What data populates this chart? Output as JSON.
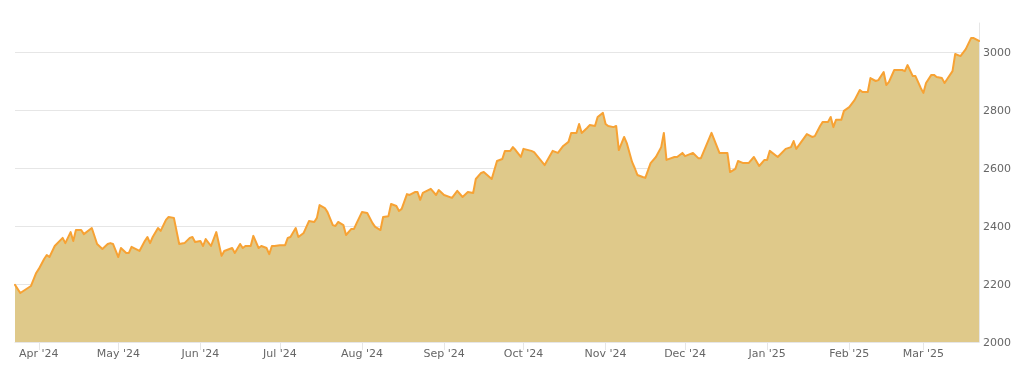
{
  "chart_data": {
    "type": "area",
    "x": [
      "2024-03-23",
      "2024-03-25",
      "2024-03-29",
      "2024-03-31",
      "2024-04-01",
      "2024-04-03",
      "2024-04-04",
      "2024-04-05",
      "2024-04-07",
      "2024-04-10",
      "2024-04-11",
      "2024-04-13",
      "2024-04-14",
      "2024-04-15",
      "2024-04-17",
      "2024-04-18",
      "2024-04-21",
      "2024-04-23",
      "2024-04-25",
      "2024-04-27",
      "2024-04-28",
      "2024-04-29",
      "2024-05-01",
      "2024-05-02",
      "2024-05-04",
      "2024-05-05",
      "2024-05-06",
      "2024-05-09",
      "2024-05-11",
      "2024-05-12",
      "2024-05-13",
      "2024-05-14",
      "2024-05-16",
      "2024-05-17",
      "2024-05-19",
      "2024-05-20",
      "2024-05-22",
      "2024-05-24",
      "2024-05-26",
      "2024-05-28",
      "2024-05-29",
      "2024-05-30",
      "2024-06-01",
      "2024-06-02",
      "2024-06-03",
      "2024-06-05",
      "2024-06-07",
      "2024-06-09",
      "2024-06-10",
      "2024-06-13",
      "2024-06-14",
      "2024-06-16",
      "2024-06-17",
      "2024-06-18",
      "2024-06-20",
      "2024-06-21",
      "2024-06-23",
      "2024-06-24",
      "2024-06-26",
      "2024-06-27",
      "2024-06-28",
      "2024-06-29",
      "2024-07-01",
      "2024-07-03",
      "2024-07-04",
      "2024-07-05",
      "2024-07-07",
      "2024-07-08",
      "2024-07-10",
      "2024-07-12",
      "2024-07-14",
      "2024-07-15",
      "2024-07-16",
      "2024-07-18",
      "2024-07-19",
      "2024-07-21",
      "2024-07-22",
      "2024-07-23",
      "2024-07-25",
      "2024-07-26",
      "2024-07-28",
      "2024-07-29",
      "2024-07-30",
      "2024-08-01",
      "2024-08-03",
      "2024-08-05",
      "2024-08-06",
      "2024-08-08",
      "2024-08-09",
      "2024-08-11",
      "2024-08-12",
      "2024-08-14",
      "2024-08-15",
      "2024-08-16",
      "2024-08-18",
      "2024-08-19",
      "2024-08-21",
      "2024-08-22",
      "2024-08-23",
      "2024-08-24",
      "2024-08-27",
      "2024-08-29",
      "2024-08-30",
      "2024-09-01",
      "2024-09-04",
      "2024-09-06",
      "2024-09-08",
      "2024-09-10",
      "2024-09-12",
      "2024-09-13",
      "2024-09-15",
      "2024-09-16",
      "2024-09-19",
      "2024-09-21",
      "2024-09-23",
      "2024-09-24",
      "2024-09-26",
      "2024-09-27",
      "2024-09-28",
      "2024-09-30",
      "2024-10-01",
      "2024-10-04",
      "2024-10-05",
      "2024-10-09",
      "2024-10-12",
      "2024-10-14",
      "2024-10-16",
      "2024-10-18",
      "2024-10-19",
      "2024-10-21",
      "2024-10-22",
      "2024-10-23",
      "2024-10-25",
      "2024-10-26",
      "2024-10-28",
      "2024-10-29",
      "2024-10-31",
      "2024-11-01",
      "2024-11-02",
      "2024-11-04",
      "2024-11-05",
      "2024-11-06",
      "2024-11-08",
      "2024-11-09",
      "2024-11-11",
      "2024-11-12",
      "2024-11-13",
      "2024-11-15",
      "2024-11-16",
      "2024-11-18",
      "2024-11-20",
      "2024-11-22",
      "2024-11-23",
      "2024-11-24",
      "2024-11-27",
      "2024-11-28",
      "2024-11-30",
      "2024-12-01",
      "2024-12-04",
      "2024-12-06",
      "2024-12-07",
      "2024-12-11",
      "2024-12-14",
      "2024-12-17",
      "2024-12-18",
      "2024-12-20",
      "2024-12-21",
      "2024-12-23",
      "2024-12-25",
      "2024-12-27",
      "2024-12-29",
      "2024-12-31",
      "2025-01-01",
      "2025-01-02",
      "2025-01-05",
      "2025-01-08",
      "2025-01-10",
      "2025-01-11",
      "2025-01-12",
      "2025-01-16",
      "2025-01-18",
      "2025-01-19",
      "2025-01-21",
      "2025-01-22",
      "2025-01-24",
      "2025-01-25",
      "2025-01-26",
      "2025-01-27",
      "2025-01-29",
      "2025-01-30",
      "2025-02-01",
      "2025-02-03",
      "2025-02-05",
      "2025-02-06",
      "2025-02-08",
      "2025-02-09",
      "2025-02-11",
      "2025-02-12",
      "2025-02-14",
      "2025-02-15",
      "2025-02-16",
      "2025-02-18",
      "2025-02-21",
      "2025-02-22",
      "2025-02-23",
      "2025-02-25",
      "2025-02-26",
      "2025-02-28",
      "2025-03-01",
      "2025-03-02",
      "2025-03-04",
      "2025-03-05",
      "2025-03-06",
      "2025-03-08",
      "2025-03-09",
      "2025-03-12",
      "2025-03-13",
      "2025-03-15",
      "2025-03-17",
      "2025-03-19",
      "2025-03-20",
      "2025-03-22"
    ],
    "series": [
      {
        "color": "#f7a234",
        "values": [
          2197,
          2169,
          2193,
          2238,
          2252,
          2286,
          2300,
          2293,
          2331,
          2359,
          2341,
          2379,
          2348,
          2386,
          2386,
          2372,
          2393,
          2338,
          2321,
          2338,
          2341,
          2338,
          2293,
          2324,
          2307,
          2307,
          2328,
          2314,
          2348,
          2362,
          2341,
          2362,
          2393,
          2383,
          2421,
          2431,
          2428,
          2338,
          2341,
          2359,
          2362,
          2345,
          2348,
          2331,
          2355,
          2331,
          2379,
          2297,
          2314,
          2324,
          2307,
          2338,
          2324,
          2331,
          2331,
          2366,
          2324,
          2331,
          2324,
          2303,
          2331,
          2331,
          2334,
          2334,
          2359,
          2362,
          2393,
          2362,
          2376,
          2417,
          2414,
          2428,
          2472,
          2462,
          2448,
          2403,
          2400,
          2414,
          2403,
          2369,
          2390,
          2390,
          2410,
          2448,
          2445,
          2410,
          2397,
          2386,
          2431,
          2434,
          2476,
          2469,
          2452,
          2459,
          2510,
          2507,
          2517,
          2517,
          2490,
          2514,
          2528,
          2507,
          2524,
          2507,
          2497,
          2521,
          2500,
          2517,
          2514,
          2562,
          2583,
          2586,
          2562,
          2624,
          2631,
          2659,
          2659,
          2672,
          2662,
          2638,
          2666,
          2659,
          2655,
          2610,
          2659,
          2652,
          2676,
          2690,
          2721,
          2721,
          2752,
          2721,
          2738,
          2748,
          2745,
          2776,
          2790,
          2752,
          2745,
          2741,
          2745,
          2662,
          2707,
          2686,
          2621,
          2600,
          2576,
          2569,
          2566,
          2617,
          2638,
          2672,
          2721,
          2628,
          2638,
          2638,
          2652,
          2641,
          2652,
          2634,
          2634,
          2721,
          2652,
          2652,
          2586,
          2597,
          2624,
          2617,
          2617,
          2638,
          2607,
          2628,
          2628,
          2659,
          2638,
          2666,
          2672,
          2693,
          2666,
          2717,
          2707,
          2710,
          2745,
          2759,
          2759,
          2776,
          2741,
          2766,
          2766,
          2797,
          2810,
          2834,
          2869,
          2862,
          2862,
          2910,
          2900,
          2903,
          2931,
          2886,
          2897,
          2938,
          2938,
          2934,
          2955,
          2917,
          2917,
          2876,
          2859,
          2893,
          2921,
          2921,
          2914,
          2910,
          2893,
          2934,
          2993,
          2986,
          3010,
          3048,
          3048,
          3038
        ]
      }
    ],
    "xlim": [
      "2024-03-23",
      "2025-03-22"
    ],
    "xticks": [
      {
        "value": "2024-04-01",
        "label": "Apr '24"
      },
      {
        "value": "2024-05-01",
        "label": "May '24"
      },
      {
        "value": "2024-06-01",
        "label": "Jun '24"
      },
      {
        "value": "2024-07-01",
        "label": "Jul '24"
      },
      {
        "value": "2024-08-01",
        "label": "Aug '24"
      },
      {
        "value": "2024-09-01",
        "label": "Sep '24"
      },
      {
        "value": "2024-10-01",
        "label": "Oct '24"
      },
      {
        "value": "2024-11-01",
        "label": "Nov '24"
      },
      {
        "value": "2024-12-01",
        "label": "Dec '24"
      },
      {
        "value": "2025-01-01",
        "label": "Jan '25"
      },
      {
        "value": "2025-02-01",
        "label": "Feb '25"
      },
      {
        "value": "2025-03-01",
        "label": "Mar '25"
      }
    ],
    "ylim": [
      2000,
      3100
    ],
    "yticks": [
      2000,
      2200,
      2400,
      2600,
      2800,
      3000
    ],
    "grid": "y",
    "marker": "none",
    "line_style": "solid"
  }
}
